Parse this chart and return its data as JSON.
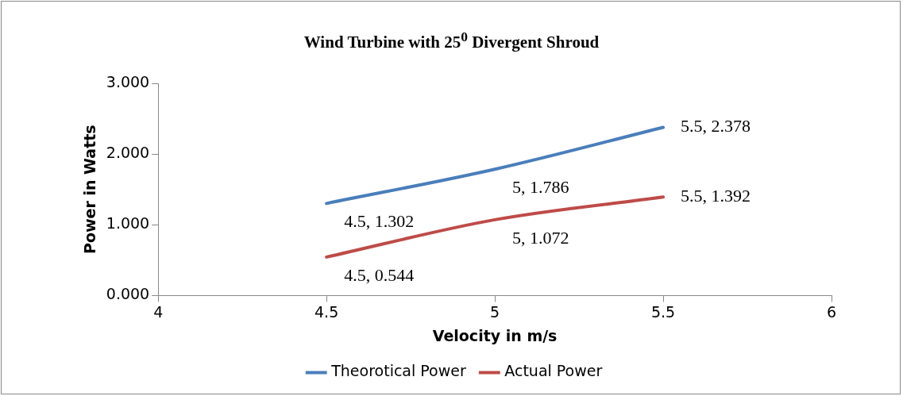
{
  "chart_data": {
    "type": "line",
    "title": "Wind Turbine with 25$^{0}$ Divergent Shroud",
    "xlabel": "Velocity in m/s",
    "ylabel": "Power in Watts",
    "x": [
      4.5,
      5,
      5.5
    ],
    "series": [
      {
        "name": "Theorotical Power",
        "color": "#4a7ebb",
        "values": [
          1.302,
          1.786,
          2.378
        ],
        "value_labels": [
          "4.5, 1.302",
          "5, 1.786",
          "5.5, 2.378"
        ]
      },
      {
        "name": "Actual Power",
        "color": "#be4b48",
        "values": [
          0.544,
          1.072,
          1.392
        ],
        "value_labels": [
          "4.5, 0.544",
          "5, 1.072",
          "5.5, 1.392"
        ]
      }
    ],
    "xlim": [
      4,
      6
    ],
    "xticks": [
      4,
      4.5,
      5,
      5.5,
      6
    ],
    "ylim": [
      0,
      3
    ],
    "yticks": [
      {
        "value": 0,
        "label": "0.000"
      },
      {
        "value": 1,
        "label": "1.000"
      },
      {
        "value": 2,
        "label": "2.000"
      },
      {
        "value": 3,
        "label": "3.000"
      }
    ],
    "grid": false,
    "legend": "bottom",
    "marker": "none",
    "line_style": "solid"
  }
}
